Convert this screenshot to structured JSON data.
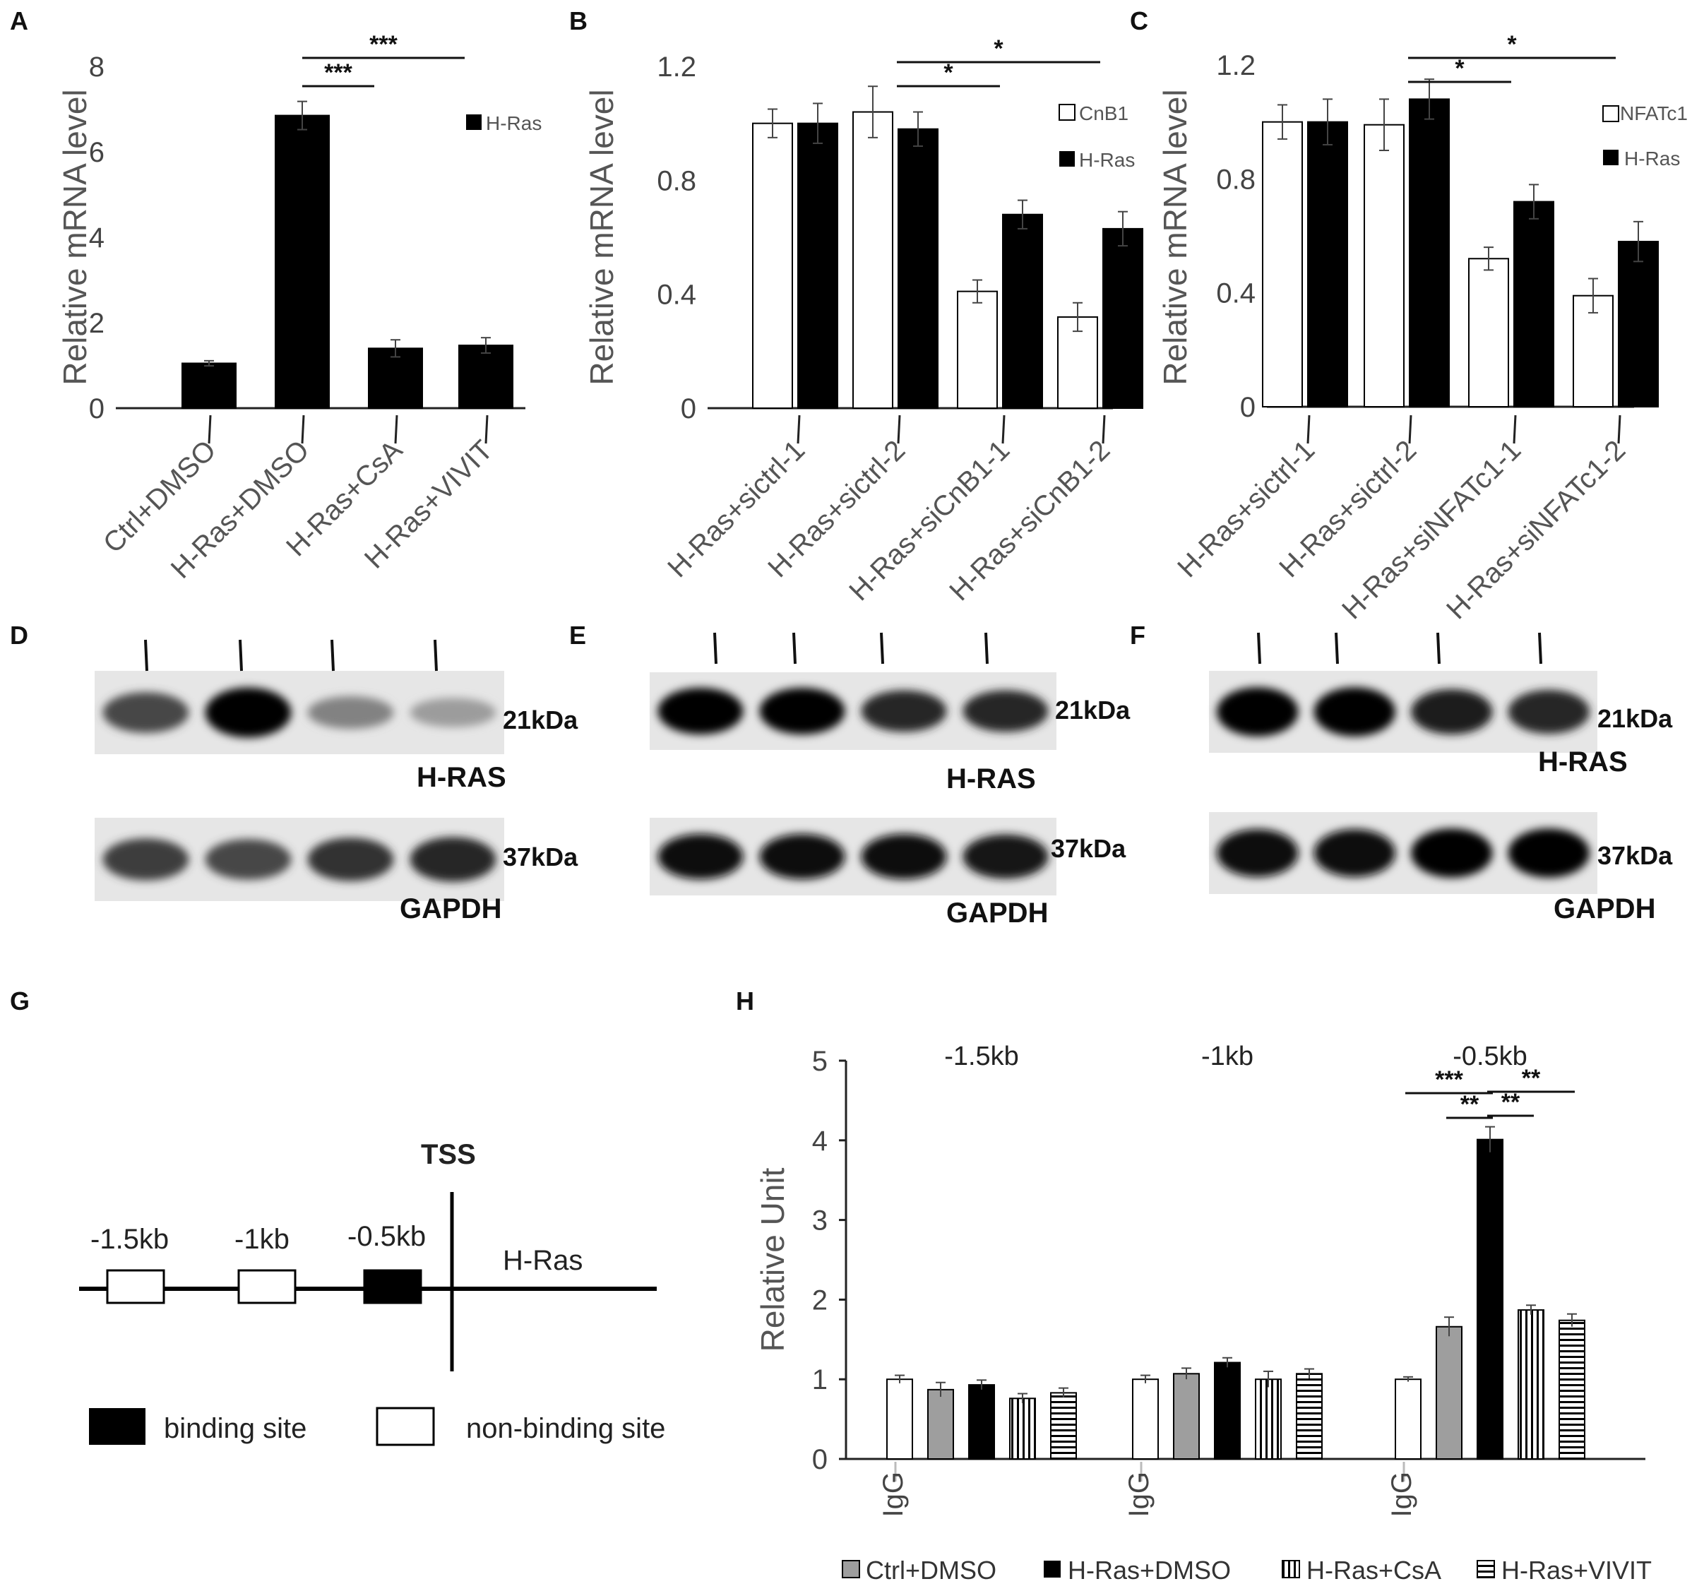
{
  "panels": {
    "A": "A",
    "B": "B",
    "C": "C",
    "D": "D",
    "E": "E",
    "F": "F",
    "G": "G",
    "H": "H"
  },
  "colors": {
    "black": "#000000",
    "white": "#ffffff",
    "gray": "#9e9e9e",
    "axis": "#222222"
  },
  "chart_data": [
    {
      "id": "A",
      "type": "bar",
      "ylabel": "Relative mRNA level",
      "ylim": [
        0,
        8
      ],
      "yticks": [
        "0",
        "2",
        "4",
        "6",
        "8"
      ],
      "categories": [
        "Ctrl+DMSO",
        "H-Ras+DMSO",
        "H-Ras+CsA",
        "H-Ras+VIVIT"
      ],
      "series": [
        {
          "name": "H-Ras",
          "fill": "black",
          "values": [
            1.05,
            6.85,
            1.4,
            1.47
          ],
          "errors": [
            0.06,
            0.33,
            0.2,
            0.18
          ]
        }
      ],
      "significance": [
        {
          "from": 1,
          "to": 2,
          "label": "***"
        },
        {
          "from": 1,
          "to": 3,
          "label": "***"
        }
      ]
    },
    {
      "id": "B",
      "type": "bar",
      "ylabel": "Relative mRNA level",
      "ylim": [
        0,
        1.2
      ],
      "yticks": [
        "0",
        "0.4",
        "0.8",
        "1.2"
      ],
      "categories": [
        "H-Ras+sictrl-1",
        "H-Ras+sictrl-2",
        "H-Ras+siCnB1-1",
        "H-Ras+siCnB1-2"
      ],
      "series": [
        {
          "name": "CnB1",
          "fill": "white",
          "values": [
            1.0,
            1.04,
            0.41,
            0.32
          ],
          "errors": [
            0.05,
            0.09,
            0.04,
            0.05
          ]
        },
        {
          "name": "H-Ras",
          "fill": "black",
          "values": [
            1.0,
            0.98,
            0.68,
            0.63
          ],
          "errors": [
            0.07,
            0.06,
            0.05,
            0.06
          ]
        }
      ],
      "significance": [
        {
          "from": 1,
          "to": 2,
          "label": "*"
        },
        {
          "from": 1,
          "to": 3,
          "label": "*"
        }
      ]
    },
    {
      "id": "C",
      "type": "bar",
      "ylabel": "Relative mRNA level",
      "ylim": [
        0,
        1.2
      ],
      "yticks": [
        "0",
        "0.4",
        "0.8",
        "1.2"
      ],
      "categories": [
        "H-Ras+sictrl-1",
        "H-Ras+sictrl-2",
        "H-Ras+siNFATc1-1",
        "H-Ras+siNFATc1-2"
      ],
      "series": [
        {
          "name": "NFATc1",
          "fill": "white",
          "values": [
            1.0,
            0.99,
            0.52,
            0.39
          ],
          "errors": [
            0.06,
            0.09,
            0.04,
            0.06
          ]
        },
        {
          "name": "H-Ras",
          "fill": "black",
          "values": [
            1.0,
            1.08,
            0.72,
            0.58
          ],
          "errors": [
            0.08,
            0.07,
            0.06,
            0.07
          ]
        }
      ],
      "significance": [
        {
          "from": 1,
          "to": 2,
          "label": "*"
        },
        {
          "from": 1,
          "to": 3,
          "label": "*"
        }
      ]
    },
    {
      "id": "H",
      "type": "bar",
      "ylabel": "Relative  Unit",
      "ylim": [
        0,
        5
      ],
      "yticks": [
        "0",
        "1",
        "2",
        "3",
        "4",
        "5"
      ],
      "groups": [
        {
          "label": "-1.5kb",
          "igg_label": "IgG",
          "values": [
            1.0,
            0.87,
            0.93,
            0.76,
            0.83
          ],
          "errors": [
            0.05,
            0.09,
            0.06,
            0.06,
            0.06
          ]
        },
        {
          "label": "-1kb",
          "igg_label": "IgG",
          "values": [
            1.0,
            1.07,
            1.21,
            1.0,
            1.07
          ],
          "errors": [
            0.05,
            0.07,
            0.06,
            0.1,
            0.06
          ]
        },
        {
          "label": "-0.5kb",
          "igg_label": "IgG",
          "values": [
            1.0,
            1.66,
            4.01,
            1.87,
            1.74
          ],
          "errors": [
            0.03,
            0.12,
            0.16,
            0.06,
            0.08
          ]
        }
      ],
      "series": [
        {
          "name": "IgG",
          "fill": "white"
        },
        {
          "name": "Ctrl+DMSO",
          "fill": "gray"
        },
        {
          "name": "H-Ras+DMSO",
          "fill": "black"
        },
        {
          "name": "H-Ras+CsA",
          "fill": "vstripe"
        },
        {
          "name": "H-Ras+VIVIT",
          "fill": "hstripe"
        }
      ],
      "significance": [
        {
          "group": 2,
          "from": 1,
          "to": 2,
          "label": "**"
        },
        {
          "group": 2,
          "from": 0,
          "to": 2,
          "label": "***"
        },
        {
          "group": 2,
          "from": 2,
          "to": 3,
          "label": "**"
        },
        {
          "group": 2,
          "from": 2,
          "to": 4,
          "label": "**"
        }
      ]
    }
  ],
  "blots": {
    "D": {
      "top_kda": "21kDa",
      "top_name": "H-RAS",
      "bottom_kda": "37kDa",
      "bottom_name": "GAPDH",
      "top_intensity": [
        0.65,
        1.0,
        0.35,
        0.22
      ],
      "bottom_intensity": [
        0.7,
        0.65,
        0.75,
        0.8
      ]
    },
    "E": {
      "top_kda": "21kDa",
      "top_name": "H-RAS",
      "bottom_kda": "37kDa",
      "bottom_name": "GAPDH",
      "top_intensity": [
        1.0,
        1.0,
        0.8,
        0.8
      ],
      "bottom_intensity": [
        0.95,
        0.95,
        0.95,
        0.9
      ]
    },
    "F": {
      "top_kda": "21kDa",
      "top_name": "H-RAS",
      "bottom_kda": "37kDa",
      "bottom_name": "GAPDH",
      "top_intensity": [
        1.0,
        1.0,
        0.85,
        0.8
      ],
      "bottom_intensity": [
        0.95,
        0.95,
        1.0,
        1.0
      ]
    }
  },
  "schematic": {
    "tss": "TSS",
    "gene": "H-Ras",
    "sites": [
      "-1.5kb",
      "-1kb",
      "-0.5kb"
    ],
    "binding": [
      false,
      false,
      true
    ],
    "legend_binding": "binding site",
    "legend_nonbinding": "non-binding site"
  }
}
